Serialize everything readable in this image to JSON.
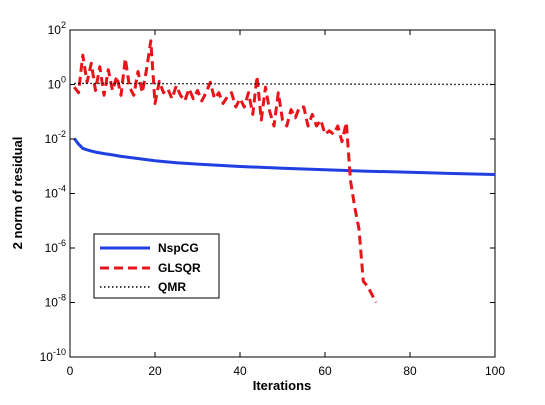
{
  "chart_data": {
    "type": "line",
    "title": "",
    "xlabel": "Iterations",
    "ylabel": "2 norm of residual",
    "xlim": [
      0,
      100
    ],
    "ylim_log10": [
      -10,
      2
    ],
    "yscale": "log",
    "xticks": [
      "0",
      "20",
      "40",
      "60",
      "80",
      "100"
    ],
    "yticks": [
      {
        "base": "10",
        "exp": "2"
      },
      {
        "base": "10",
        "exp": "0"
      },
      {
        "base": "10",
        "exp": "-2"
      },
      {
        "base": "10",
        "exp": "-4"
      },
      {
        "base": "10",
        "exp": "-6"
      },
      {
        "base": "10",
        "exp": "-8"
      },
      {
        "base": "10",
        "exp": "-10"
      }
    ],
    "legend_position": "lower-left",
    "grid": false,
    "series": [
      {
        "name": "NspCG",
        "color": "#1f3fe0",
        "style": "solid",
        "x": [
          1,
          2,
          3,
          4,
          5,
          6,
          8,
          10,
          12,
          15,
          20,
          25,
          30,
          40,
          50,
          60,
          70,
          80,
          90,
          100
        ],
        "y": [
          0.0105,
          0.0065,
          0.0045,
          0.004,
          0.0036,
          0.0033,
          0.0029,
          0.0026,
          0.0023,
          0.002,
          0.0016,
          0.00135,
          0.0012,
          0.00098,
          0.00085,
          0.00075,
          0.00066,
          0.0006,
          0.00054,
          0.0005
        ]
      },
      {
        "name": "GLSQR",
        "color": "#e8141a",
        "style": "dashed",
        "x": [
          1,
          2,
          3,
          4,
          5,
          6,
          7,
          8,
          9,
          10,
          11,
          12,
          13,
          14,
          15,
          16,
          17,
          18,
          19,
          20,
          21,
          22,
          23,
          24,
          25,
          26,
          27,
          28,
          29,
          30,
          31,
          32,
          33,
          34,
          35,
          36,
          37,
          38,
          39,
          40,
          41,
          42,
          43,
          44,
          45,
          46,
          47,
          48,
          49,
          50,
          51,
          52,
          53,
          54,
          55,
          56,
          57,
          58,
          59,
          60,
          61,
          62,
          63,
          64,
          65,
          66,
          67,
          68,
          69,
          70,
          71,
          72
        ],
        "y": [
          0.8,
          0.5,
          12,
          1.2,
          6,
          0.6,
          4.5,
          0.4,
          3.5,
          0.6,
          2.0,
          0.4,
          9.0,
          0.8,
          0.4,
          3.0,
          0.5,
          3.5,
          40,
          0.2,
          1.3,
          0.5,
          0.7,
          0.3,
          0.9,
          0.4,
          0.25,
          0.7,
          0.3,
          0.6,
          0.25,
          0.5,
          1.2,
          0.3,
          0.5,
          0.2,
          0.35,
          0.5,
          0.15,
          0.3,
          0.15,
          0.5,
          0.08,
          2.0,
          0.05,
          0.8,
          0.1,
          0.03,
          0.5,
          0.05,
          0.03,
          0.12,
          0.06,
          0.15,
          0.15,
          0.03,
          0.08,
          0.03,
          0.05,
          0.015,
          0.02,
          0.015,
          0.03,
          0.008,
          0.04,
          0.0003,
          3e-05,
          5e-06,
          6e-08,
          4e-08,
          2e-08,
          1e-08
        ]
      },
      {
        "name": "QMR",
        "color": "#000000",
        "style": "dotted",
        "x": [
          1,
          100
        ],
        "y": [
          1.1,
          1.0
        ]
      }
    ]
  }
}
